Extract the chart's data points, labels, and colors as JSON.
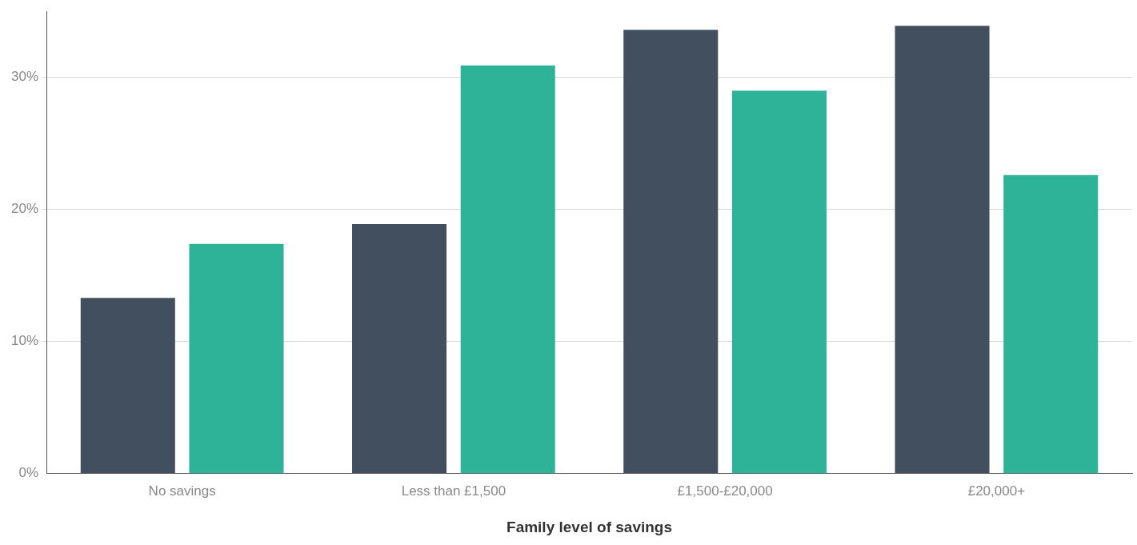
{
  "chart_data": {
    "type": "bar",
    "xlabel": "Family level of savings",
    "categories": [
      "No savings",
      "Less than £1,500",
      "£1,500-£20,000",
      "£20,000+"
    ],
    "series": [
      {
        "color": "#414f5f",
        "values": [
          13.3,
          18.9,
          33.6,
          33.9
        ]
      },
      {
        "color": "#2eb398",
        "values": [
          17.4,
          30.9,
          29.0,
          22.6
        ]
      }
    ],
    "ylim": [
      0,
      35
    ],
    "yticks": [
      {
        "value": 0,
        "label": "0%"
      },
      {
        "value": 10,
        "label": "10%"
      },
      {
        "value": 20,
        "label": "20%"
      },
      {
        "value": 30,
        "label": "30%"
      }
    ],
    "grid": "y",
    "legend": false
  }
}
